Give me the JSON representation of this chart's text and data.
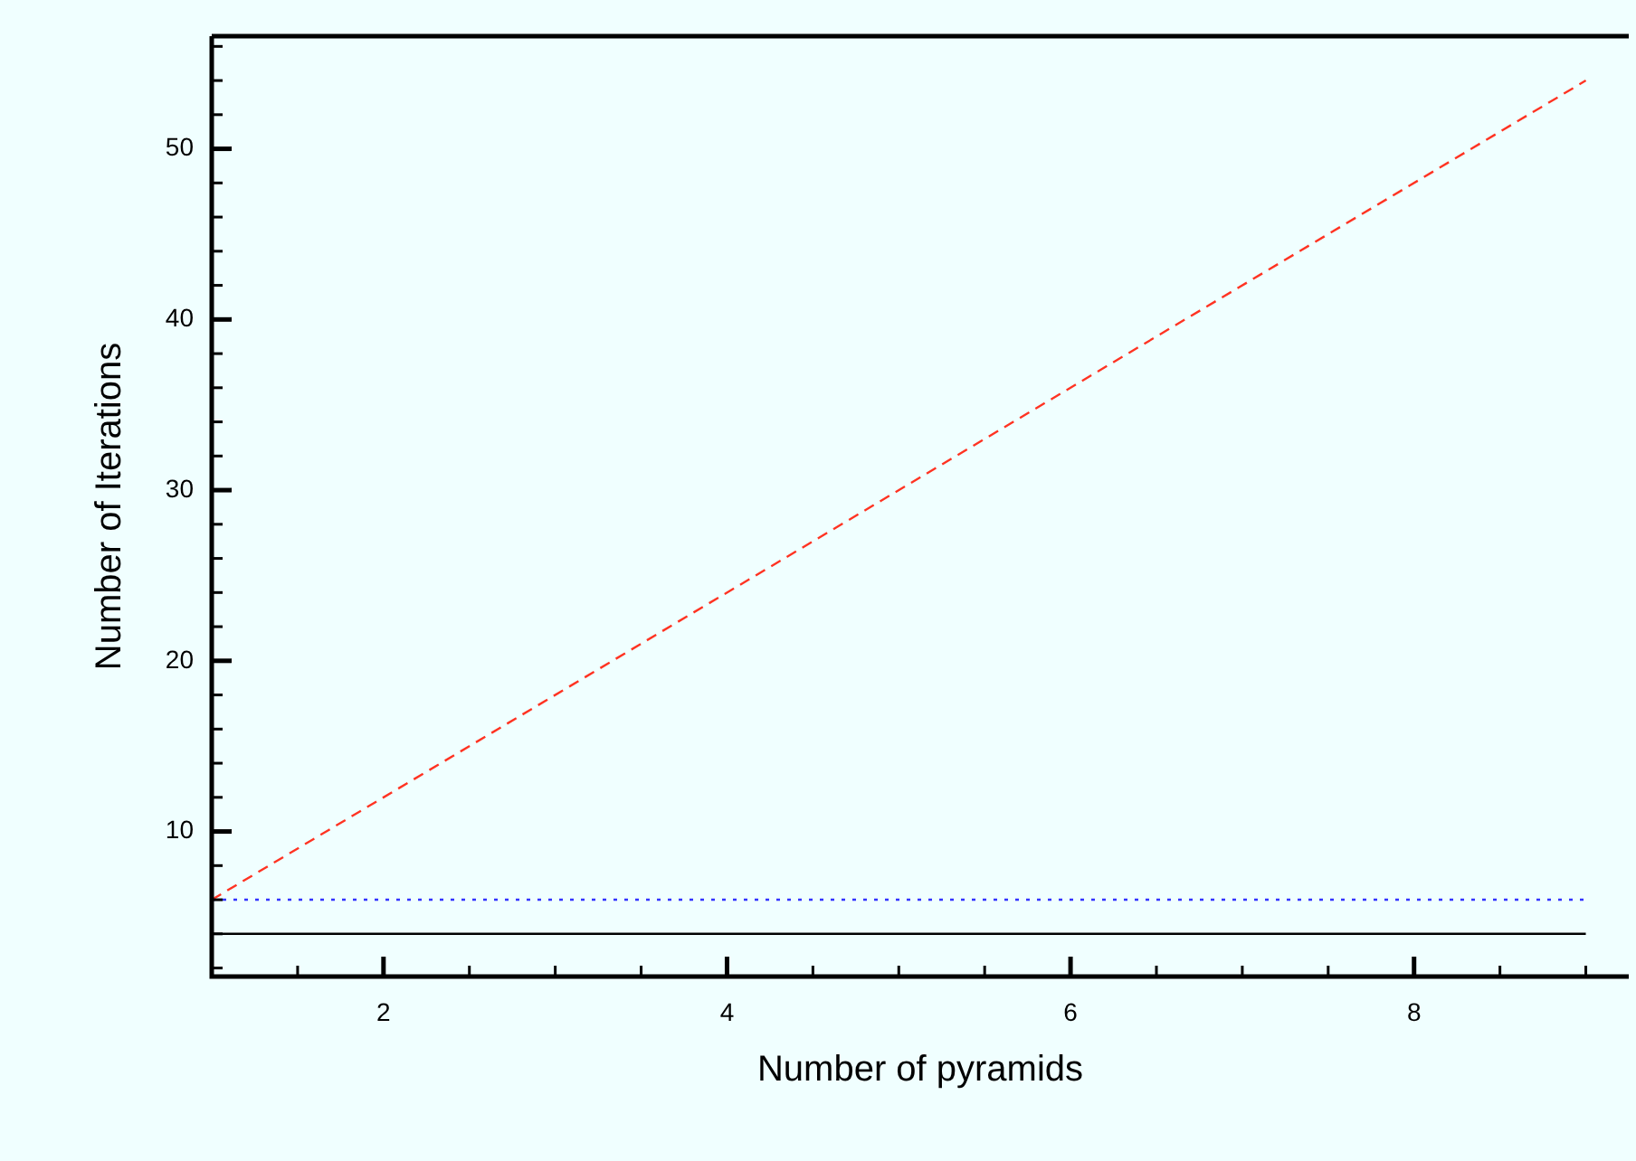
{
  "chart_data": {
    "type": "line",
    "xlabel": "Number of pyramids",
    "ylabel": "Number of Iterations",
    "xlim": [
      1,
      9.25
    ],
    "ylim": [
      1.5,
      56.6
    ],
    "xticks": [
      {
        "value": 1.5,
        "label": null
      },
      2,
      {
        "value": 2.5,
        "label": null
      },
      {
        "value": 3,
        "label": null
      },
      {
        "value": 3.5,
        "label": null
      },
      4,
      {
        "value": 4.5,
        "label": null
      },
      {
        "value": 5,
        "label": null
      },
      {
        "value": 5.5,
        "label": null
      },
      6,
      {
        "value": 6.5,
        "label": null
      },
      {
        "value": 7,
        "label": null
      },
      {
        "value": 7.5,
        "label": null
      },
      8,
      {
        "value": 8.5,
        "label": null
      },
      {
        "value": 9,
        "label": null
      }
    ],
    "yticks": [
      {
        "value": 2,
        "label": null
      },
      {
        "value": 4,
        "label": null
      },
      {
        "value": 6,
        "label": null
      },
      {
        "value": 8,
        "label": null
      },
      10,
      {
        "value": 12,
        "label": null
      },
      {
        "value": 14,
        "label": null
      },
      {
        "value": 16,
        "label": null
      },
      {
        "value": 18,
        "label": null
      },
      20,
      {
        "value": 22,
        "label": null
      },
      {
        "value": 24,
        "label": null
      },
      {
        "value": 26,
        "label": null
      },
      {
        "value": 28,
        "label": null
      },
      30,
      {
        "value": 32,
        "label": null
      },
      {
        "value": 34,
        "label": null
      },
      {
        "value": 36,
        "label": null
      },
      {
        "value": 38,
        "label": null
      },
      40,
      {
        "value": 42,
        "label": null
      },
      {
        "value": 44,
        "label": null
      },
      {
        "value": 46,
        "label": null
      },
      {
        "value": 48,
        "label": null
      },
      50,
      {
        "value": 52,
        "label": null
      },
      {
        "value": 54,
        "label": null
      },
      {
        "value": 56,
        "label": null
      }
    ],
    "x": [
      1,
      9
    ],
    "grid": false,
    "legend": false,
    "marker": "none",
    "series": [
      {
        "values": [
          6,
          54
        ],
        "color": "#ff3322",
        "line_style": "dashed"
      },
      {
        "values": [
          6,
          6
        ],
        "color": "#3333ff",
        "line_style": "dotted"
      },
      {
        "values": [
          4,
          4
        ],
        "color": "#000000",
        "line_style": "solid"
      }
    ]
  }
}
